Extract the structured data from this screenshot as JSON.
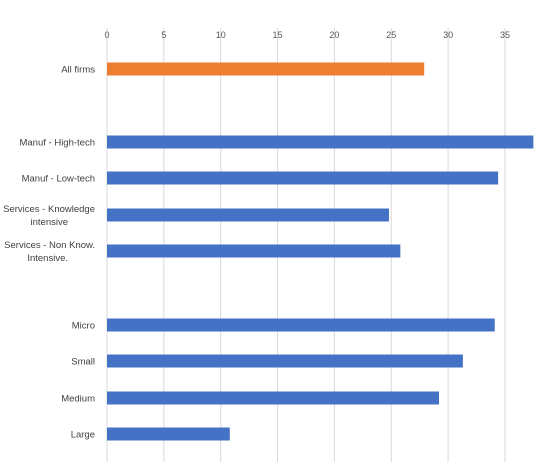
{
  "chart_data": {
    "type": "bar",
    "orientation": "horizontal",
    "x_ticks": [
      "0",
      "5",
      "10",
      "15",
      "20",
      "25",
      "30",
      "35"
    ],
    "xlim": [
      0,
      37
    ],
    "grid": "vertical",
    "categories": [
      [
        "All firms"
      ],
      [
        "Manuf - High-tech"
      ],
      [
        "Manuf - Low-tech"
      ],
      [
        "Services - Knowledge",
        "intensive"
      ],
      [
        "Services - Non Know.",
        "Intensive."
      ],
      [
        "Micro"
      ],
      [
        "Small"
      ],
      [
        "Medium"
      ],
      [
        "Large"
      ]
    ],
    "values": [
      27.9,
      37.5,
      34.4,
      24.8,
      25.8,
      34.1,
      31.3,
      29.2,
      10.8
    ],
    "colors": [
      "#ED7D31",
      "#4472C4",
      "#4472C4",
      "#4472C4",
      "#4472C4",
      "#4472C4",
      "#4472C4",
      "#4472C4",
      "#4472C4"
    ]
  }
}
